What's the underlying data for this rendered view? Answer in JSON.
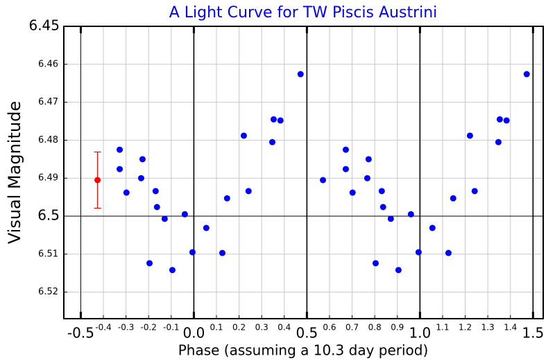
{
  "chart_data": {
    "type": "scatter",
    "title": "A Light Curve for TW Piscis Austrini",
    "xlabel": "Phase (assuming a 10.3 day period)",
    "ylabel": "Visual Magnitude",
    "xlim": [
      -0.575,
      1.545
    ],
    "ylim": [
      6.45,
      6.527
    ],
    "y_inverted": true,
    "grid": true,
    "xticks": [
      {
        "value": -0.5,
        "label": "-0.5"
      },
      {
        "value": 0,
        "label": "0.0"
      },
      {
        "value": 0.5,
        "label": "0.5"
      },
      {
        "value": 1,
        "label": "1.0"
      },
      {
        "value": 1.5,
        "label": "1.5"
      }
    ],
    "xticks_minor": [
      -0.4,
      -0.3,
      -0.2,
      -0.1,
      0.1,
      0.2,
      0.3,
      0.4,
      0.6,
      0.7,
      0.8,
      0.9,
      1.1,
      1.2,
      1.3,
      1.4
    ],
    "yticks": [
      6.45,
      6.5
    ],
    "yticks_minor": [
      6.46,
      6.47,
      6.48,
      6.49,
      6.51,
      6.52
    ],
    "series": [
      {
        "color": "#0000ff",
        "x": [
          -0.328,
          -0.328,
          -0.298,
          -0.233,
          -0.227,
          -0.169,
          -0.163,
          -0.129,
          -0.196,
          -0.095,
          -0.04,
          -0.006,
          0.055,
          0.126,
          0.147,
          0.221,
          0.242,
          0.347,
          0.353,
          0.383,
          0.472,
          0.571,
          0.672,
          0.672,
          0.702,
          0.767,
          0.773,
          0.831,
          0.837,
          0.871,
          0.804,
          0.905,
          0.96,
          0.994,
          1.055,
          1.126,
          1.147,
          1.221,
          1.242,
          1.347,
          1.353,
          1.383,
          1.472
        ],
        "values": [
          6.4825,
          6.4876,
          6.4938,
          6.49,
          6.485,
          6.4934,
          6.4976,
          6.5007,
          6.5124,
          6.5142,
          6.4995,
          6.5095,
          6.5031,
          6.5097,
          6.4953,
          6.4788,
          6.4934,
          6.4805,
          6.4745,
          6.4748,
          6.4626,
          6.4905,
          6.4825,
          6.4876,
          6.4938,
          6.49,
          6.485,
          6.4934,
          6.4976,
          6.5007,
          6.5124,
          6.5142,
          6.4995,
          6.5095,
          6.5031,
          6.5097,
          6.4953,
          6.4788,
          6.4934,
          6.4805,
          6.4745,
          6.4748,
          6.4626
        ]
      },
      {
        "color": "#ff0000",
        "x": [
          -0.426
        ],
        "values": [
          6.4905
        ],
        "errors": [
          0.0074
        ]
      }
    ]
  }
}
